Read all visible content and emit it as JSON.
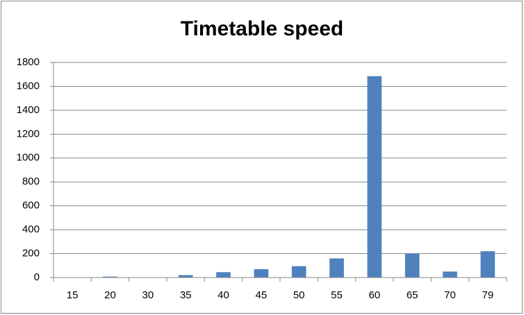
{
  "chart_data": {
    "type": "bar",
    "title": "Timetable speed",
    "categories": [
      "15",
      "20",
      "30",
      "35",
      "40",
      "45",
      "50",
      "55",
      "60",
      "65",
      "70",
      "79"
    ],
    "values": [
      0,
      8,
      0,
      20,
      45,
      70,
      95,
      160,
      1685,
      200,
      50,
      220
    ],
    "color": "#4f81bd",
    "ylim": [
      0,
      1800
    ],
    "yticks": [
      0,
      200,
      400,
      600,
      800,
      1000,
      1200,
      1400,
      1600,
      1800
    ],
    "grid": true
  }
}
